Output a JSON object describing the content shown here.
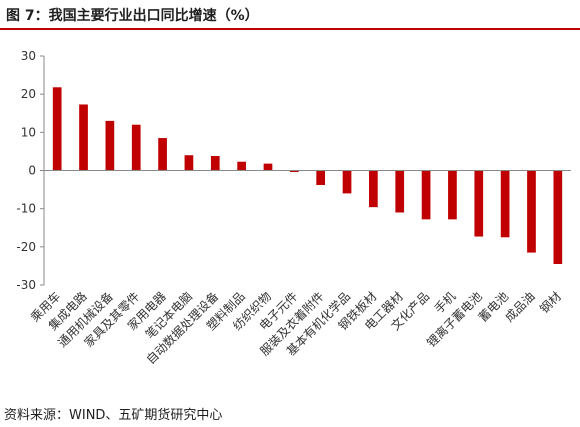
{
  "header": {
    "title": "图 7：我国主要行业出口同比增速（%）"
  },
  "footer": {
    "source": "资料来源：WIND、五矿期货研究中心"
  },
  "chart_data": {
    "type": "bar",
    "title": "图 7：我国主要行业出口同比增速（%）",
    "xlabel": "",
    "ylabel": "",
    "ylim": [
      -30,
      30
    ],
    "yticks": [
      30,
      20,
      10,
      0,
      -10,
      -20,
      -30
    ],
    "grid": false,
    "legend": "none",
    "bar_color": "#c00000",
    "categories": [
      "乘用车",
      "集成电路",
      "通用机械设备",
      "家具及其零件",
      "家用电器",
      "笔记本电脑",
      "自动数据处理设备",
      "塑料制品",
      "纺织织物",
      "电子元件",
      "服装及衣着附件",
      "基本有机化学品",
      "钢铁板材",
      "电工器材",
      "文化产品",
      "手机",
      "锂离子蓄电池",
      "蓄电池",
      "成品油",
      "钢材"
    ],
    "values": [
      21.8,
      17.3,
      13.0,
      12.0,
      8.5,
      4.0,
      3.8,
      2.3,
      1.8,
      -0.4,
      -3.8,
      -6.0,
      -9.6,
      -11.0,
      -12.8,
      -12.8,
      -17.3,
      -17.5,
      -21.5,
      -24.5
    ]
  }
}
